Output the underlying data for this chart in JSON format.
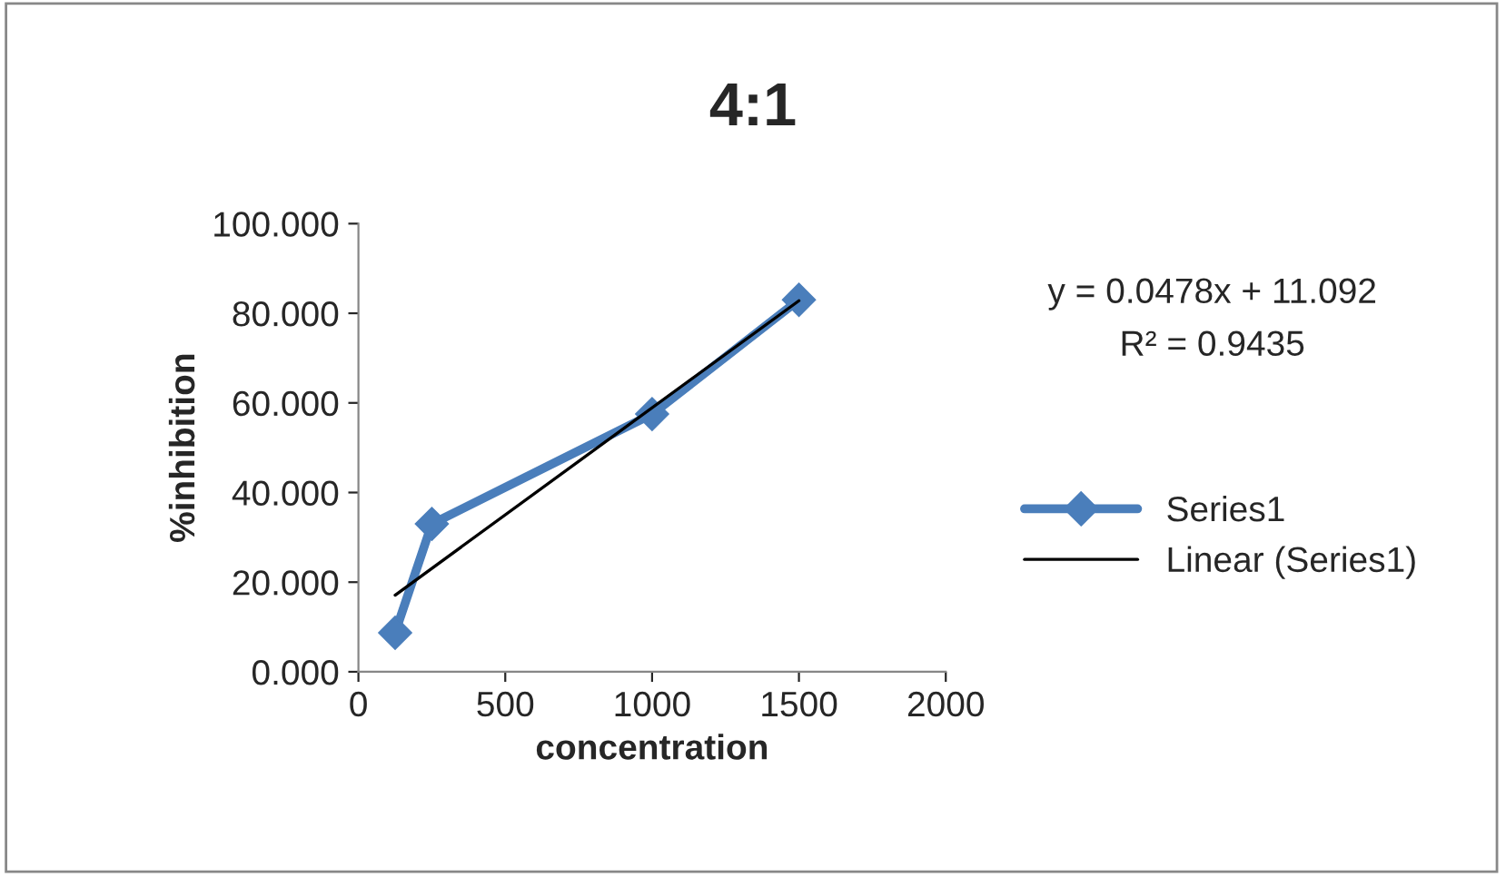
{
  "chart_data": {
    "type": "line",
    "title": "4:1",
    "xlabel": "concentration",
    "ylabel": "%inhibition",
    "x": [
      125,
      250,
      1000,
      1500
    ],
    "series": [
      {
        "name": "Series1",
        "color": "#4a7ebb",
        "values": [
          8.7,
          33.0,
          57.5,
          83.0
        ],
        "marker": "diamond"
      },
      {
        "name": "Linear (Series1)",
        "color": "#000000",
        "type": "line",
        "x": [
          125,
          1500
        ],
        "values": [
          17.1,
          82.8
        ],
        "marker": "none"
      }
    ],
    "xlim": [
      0,
      2000
    ],
    "xticks": [
      0,
      500,
      1000,
      1500,
      2000
    ],
    "ylim": [
      0,
      100
    ],
    "yticks": [
      {
        "value": 0,
        "label": "0.000"
      },
      {
        "value": 20,
        "label": "20.000"
      },
      {
        "value": 40,
        "label": "40.000"
      },
      {
        "value": 60,
        "label": "60.000"
      },
      {
        "value": 80,
        "label": "80.000"
      },
      {
        "value": 100,
        "label": "100.000"
      }
    ],
    "annotations": [
      "y = 0.0478x + 11.092",
      "R² = 0.9435"
    ],
    "grid": false,
    "legend": "right",
    "line_style": "solid"
  }
}
